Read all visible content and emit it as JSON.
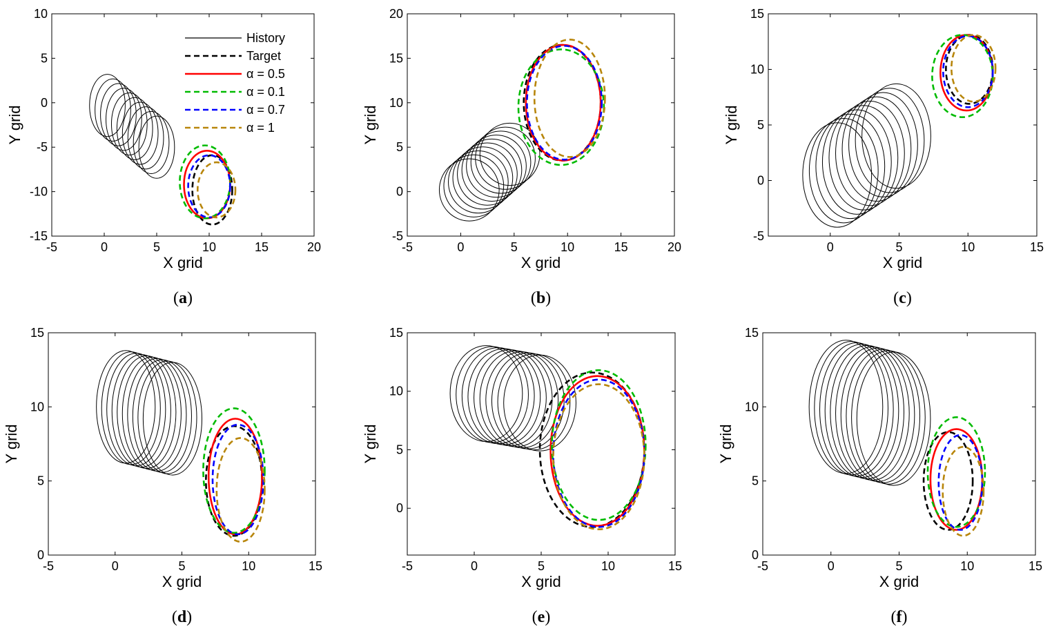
{
  "chart_data": [
    {
      "type": "line",
      "caption": "a",
      "xlabel": "X grid",
      "ylabel": "Y grid",
      "xlim": [
        -5,
        20
      ],
      "ylim": [
        -15,
        10
      ],
      "xticks": [
        -5,
        0,
        5,
        10,
        15,
        20
      ],
      "yticks": [
        -15,
        -10,
        -5,
        0,
        5,
        10
      ],
      "history": {
        "cx_start": 0.3,
        "cy_start": -0.3,
        "cx_end": 5.0,
        "cy_end": -5.0,
        "rx": 1.7,
        "ry": 3.5,
        "count": 10
      },
      "series": [
        {
          "key": "target",
          "cx": 10.3,
          "cy": -9.8,
          "rx": 1.9,
          "ry": 3.9
        },
        {
          "key": "a05",
          "cx": 9.8,
          "cy": -9.2,
          "rx": 2.2,
          "ry": 3.8
        },
        {
          "key": "a01",
          "cx": 9.6,
          "cy": -8.9,
          "rx": 2.4,
          "ry": 4.1
        },
        {
          "key": "a07",
          "cx": 10.0,
          "cy": -9.4,
          "rx": 2.0,
          "ry": 3.5
        },
        {
          "key": "a1",
          "cx": 10.7,
          "cy": -9.8,
          "rx": 1.8,
          "ry": 3.1
        }
      ]
    },
    {
      "type": "line",
      "caption": "b",
      "xlabel": "X grid",
      "ylabel": "Y grid",
      "xlim": [
        -5,
        20
      ],
      "ylim": [
        -5,
        20
      ],
      "xticks": [
        -5,
        0,
        5,
        10,
        15,
        20
      ],
      "yticks": [
        -5,
        0,
        5,
        10,
        15,
        20
      ],
      "history": {
        "cx_start": 0.8,
        "cy_start": 0.2,
        "cx_end": 4.6,
        "cy_end": 4.2,
        "rx": 2.8,
        "ry": 3.5,
        "count": 10
      },
      "series": [
        {
          "key": "target",
          "cx": 9.5,
          "cy": 10.0,
          "rx": 3.6,
          "ry": 6.5
        },
        {
          "key": "a05",
          "cx": 9.6,
          "cy": 10.0,
          "rx": 3.5,
          "ry": 6.5
        },
        {
          "key": "a01",
          "cx": 9.4,
          "cy": 9.5,
          "rx": 4.0,
          "ry": 6.5
        },
        {
          "key": "a07",
          "cx": 9.7,
          "cy": 10.0,
          "rx": 3.5,
          "ry": 6.4
        },
        {
          "key": "a1",
          "cx": 10.2,
          "cy": 10.5,
          "rx": 3.3,
          "ry": 6.6
        }
      ]
    },
    {
      "type": "line",
      "caption": "c",
      "xlabel": "X grid",
      "ylabel": "Y grid",
      "xlim": [
        -4.5,
        15
      ],
      "ylim": [
        -5,
        15
      ],
      "xticks": [
        0,
        5,
        10,
        15
      ],
      "yticks": [
        -5,
        0,
        5,
        10,
        15
      ],
      "history": {
        "cx_start": 0.5,
        "cy_start": 0.5,
        "cx_end": 4.8,
        "cy_end": 4.0,
        "rx": 2.5,
        "ry": 4.7,
        "count": 10
      },
      "series": [
        {
          "key": "target",
          "cx": 10.1,
          "cy": 10.0,
          "rx": 1.7,
          "ry": 3.1
        },
        {
          "key": "a05",
          "cx": 9.9,
          "cy": 9.7,
          "rx": 1.9,
          "ry": 3.4
        },
        {
          "key": "a01",
          "cx": 9.6,
          "cy": 9.4,
          "rx": 2.2,
          "ry": 3.7
        },
        {
          "key": "a07",
          "cx": 10.0,
          "cy": 9.8,
          "rx": 1.8,
          "ry": 3.2
        },
        {
          "key": "a1",
          "cx": 10.4,
          "cy": 10.1,
          "rx": 1.6,
          "ry": 3.0
        }
      ]
    },
    {
      "type": "line",
      "caption": "d",
      "xlabel": "X grid",
      "ylabel": "Y grid",
      "xlim": [
        -5,
        15
      ],
      "ylim": [
        0,
        15
      ],
      "xticks": [
        -5,
        0,
        5,
        10,
        15
      ],
      "yticks": [
        0,
        5,
        10,
        15
      ],
      "history": {
        "cx_start": 0.8,
        "cy_start": 10.0,
        "cx_end": 4.3,
        "cy_end": 9.2,
        "rx": 2.2,
        "ry": 3.8,
        "count": 10
      },
      "series": [
        {
          "key": "target",
          "cx": 8.9,
          "cy": 5.0,
          "rx": 2.1,
          "ry": 3.7
        },
        {
          "key": "a05",
          "cx": 9.0,
          "cy": 5.3,
          "rx": 2.0,
          "ry": 3.9
        },
        {
          "key": "a01",
          "cx": 8.9,
          "cy": 5.7,
          "rx": 2.3,
          "ry": 4.2
        },
        {
          "key": "a07",
          "cx": 9.2,
          "cy": 5.1,
          "rx": 1.9,
          "ry": 3.7
        },
        {
          "key": "a1",
          "cx": 9.4,
          "cy": 4.4,
          "rx": 1.8,
          "ry": 3.5
        }
      ]
    },
    {
      "type": "line",
      "caption": "e",
      "xlabel": "X grid",
      "ylabel": "Y grid",
      "xlim": [
        -5,
        15
      ],
      "ylim": [
        -4,
        15
      ],
      "xticks": [
        -5,
        0,
        5,
        10,
        15
      ],
      "yticks": [
        0,
        5,
        10,
        15
      ],
      "history": {
        "cx_start": 0.9,
        "cy_start": 9.8,
        "cx_end": 4.9,
        "cy_end": 9.0,
        "rx": 2.7,
        "ry": 4.1,
        "count": 10
      },
      "series": [
        {
          "key": "target",
          "cx": 8.8,
          "cy": 5.0,
          "rx": 3.9,
          "ry": 6.6
        },
        {
          "key": "a05",
          "cx": 9.2,
          "cy": 4.9,
          "rx": 3.5,
          "ry": 6.4
        },
        {
          "key": "a01",
          "cx": 9.3,
          "cy": 5.4,
          "rx": 3.5,
          "ry": 6.4
        },
        {
          "key": "a07",
          "cx": 9.3,
          "cy": 4.7,
          "rx": 3.4,
          "ry": 6.3
        },
        {
          "key": "a1",
          "cx": 9.3,
          "cy": 4.4,
          "rx": 3.4,
          "ry": 6.2
        }
      ]
    },
    {
      "type": "line",
      "caption": "f",
      "xlabel": "X grid",
      "ylabel": "Y grid",
      "xlim": [
        -5,
        15
      ],
      "ylim": [
        0,
        15
      ],
      "xticks": [
        -5,
        0,
        5,
        10,
        15
      ],
      "yticks": [
        0,
        5,
        10,
        15
      ],
      "history": {
        "cx_start": 1.1,
        "cy_start": 10.0,
        "cx_end": 4.6,
        "cy_end": 9.2,
        "rx": 2.7,
        "ry": 4.5,
        "count": 10
      },
      "series": [
        {
          "key": "target",
          "cx": 8.6,
          "cy": 5.0,
          "rx": 1.8,
          "ry": 3.3
        },
        {
          "key": "a05",
          "cx": 9.2,
          "cy": 5.1,
          "rx": 1.9,
          "ry": 3.4
        },
        {
          "key": "a01",
          "cx": 9.2,
          "cy": 5.6,
          "rx": 2.1,
          "ry": 3.7
        },
        {
          "key": "a07",
          "cx": 9.5,
          "cy": 4.9,
          "rx": 1.6,
          "ry": 3.2
        },
        {
          "key": "a1",
          "cx": 9.7,
          "cy": 4.3,
          "rx": 1.5,
          "ry": 3.0
        }
      ]
    }
  ],
  "legend": {
    "placement": "top-right of panel a",
    "entries": [
      {
        "key": "history",
        "label": "History",
        "color": "#000000",
        "style": "solid"
      },
      {
        "key": "target",
        "label": "Target",
        "color": "#000000",
        "style": "dashed"
      },
      {
        "key": "a05",
        "label": "α = 0.5",
        "color": "#ff0000",
        "style": "solid"
      },
      {
        "key": "a01",
        "label": "α = 0.1",
        "color": "#00bb00",
        "style": "dashed"
      },
      {
        "key": "a07",
        "label": "α = 0.7",
        "color": "#0000ff",
        "style": "dashed"
      },
      {
        "key": "a1",
        "label": "α = 1",
        "color": "#b8860b",
        "style": "dashed"
      }
    ]
  }
}
